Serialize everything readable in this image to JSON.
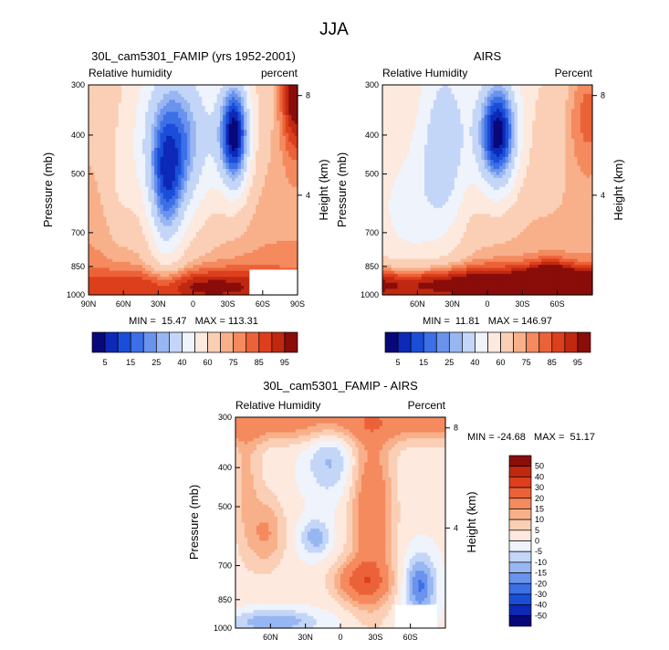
{
  "page_title": "JJA",
  "palette_rh": [
    "#08087a",
    "#0d29b8",
    "#1a4ed9",
    "#3d6fe6",
    "#6a93ed",
    "#98b6f2",
    "#c4d6f7",
    "#eef3fc",
    "#fde9de",
    "#fbcfb5",
    "#f8b08a",
    "#f48a5e",
    "#ec6238",
    "#dd3f1d",
    "#c02810",
    "#8a0d0a"
  ],
  "palette_diff": [
    "#08087a",
    "#0d29b8",
    "#1a4ed9",
    "#3d6fe6",
    "#6a93ed",
    "#98b6f2",
    "#c4d6f7",
    "#eef3fc",
    "#fde9de",
    "#fbcfb5",
    "#f8b08a",
    "#f48a5e",
    "#ec6238",
    "#dd3f1d",
    "#c02810",
    "#8a0d0a"
  ],
  "chart_data": [
    {
      "type": "heatmap",
      "title": "30L_cam5301_FAMIP (yrs 1952-2001)",
      "left_label": "Relative humidity",
      "right_label": "percent",
      "ylabel": "Pressure (mb)",
      "ylabel_right": "Height (km)",
      "x_ticks": [
        "90N",
        "60N",
        "30N",
        "0",
        "30S",
        "60S",
        "90S"
      ],
      "x_range": [
        90,
        -90
      ],
      "y_ticks": [
        300,
        400,
        500,
        700,
        850,
        1000
      ],
      "y_ticks_right": [
        8,
        4
      ],
      "stats": "MIN =  15.47   MAX = 113.31",
      "colorbar_labels": [
        "5",
        "15",
        "25",
        "40",
        "60",
        "75",
        "85",
        "95"
      ],
      "levels": [
        0,
        5,
        10,
        15,
        20,
        25,
        30,
        40,
        50,
        60,
        70,
        75,
        80,
        85,
        90,
        95
      ],
      "masked_corner": true
    },
    {
      "type": "heatmap",
      "title": "AIRS",
      "left_label": "Relative Humidity",
      "right_label": "Percent",
      "ylabel": "Pressure (mb)",
      "ylabel_right": "Height (km)",
      "x_ticks": [
        "60N",
        "30N",
        "0",
        "30S",
        "60S"
      ],
      "x_range": [
        90,
        -90
      ],
      "y_ticks": [
        300,
        400,
        500,
        700,
        850,
        1000
      ],
      "y_ticks_right": [
        8,
        4
      ],
      "stats": "MIN =  11.81   MAX = 146.97",
      "colorbar_labels": [
        "5",
        "15",
        "25",
        "40",
        "60",
        "75",
        "85",
        "95"
      ],
      "levels": [
        0,
        5,
        10,
        15,
        20,
        25,
        30,
        40,
        50,
        60,
        70,
        75,
        80,
        85,
        90,
        95
      ],
      "masked_corner": false
    },
    {
      "type": "heatmap",
      "title": "30L_cam5301_FAMIP - AIRS",
      "left_label": "Relative Humidity",
      "right_label": "Percent",
      "ylabel": "Pressure (mb)",
      "ylabel_right": "Height (km)",
      "x_ticks": [
        "60N",
        "30N",
        "0",
        "30S",
        "60S"
      ],
      "x_range": [
        90,
        -90
      ],
      "y_ticks": [
        300,
        400,
        500,
        700,
        850,
        1000
      ],
      "y_ticks_right": [
        8,
        4
      ],
      "stats": "MIN = -24.68   MAX =  51.17",
      "colorbar_labels": [
        "50",
        "40",
        "30",
        "20",
        "15",
        "10",
        "5",
        "0",
        "-5",
        "-10",
        "-15",
        "-20",
        "-30",
        "-40",
        "-50"
      ],
      "levels": [
        -50,
        -40,
        -30,
        -20,
        -15,
        -10,
        -5,
        0,
        5,
        10,
        15,
        20,
        30,
        40,
        50
      ],
      "masked_corner": true
    }
  ]
}
